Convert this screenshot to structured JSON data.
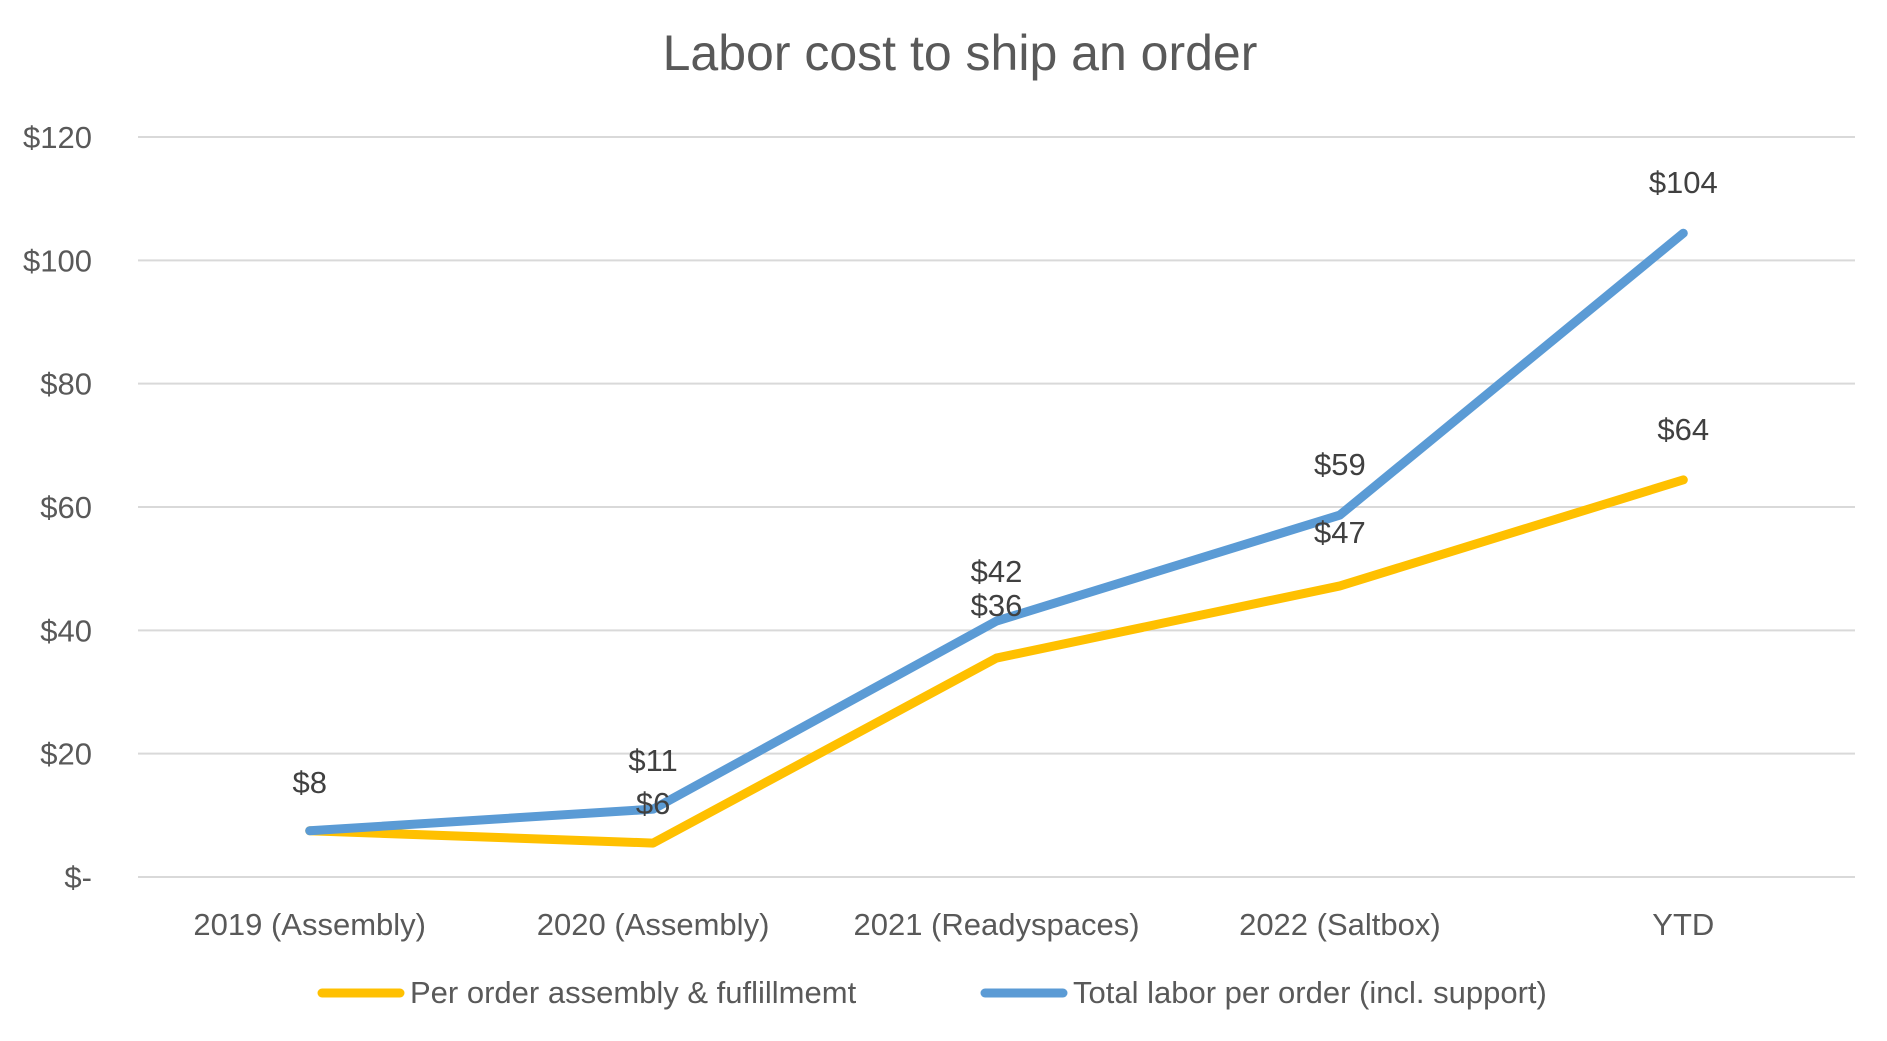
{
  "chart_data": {
    "type": "line",
    "title": "Labor cost to ship an order",
    "xlabel": "",
    "ylabel": "",
    "categories": [
      "2019 (Assembly)",
      "2020 (Assembly)",
      "2021 (Readyspaces)",
      "2022 (Saltbox)",
      "YTD"
    ],
    "ylim": [
      0,
      120
    ],
    "yticks": [
      0,
      20,
      40,
      60,
      80,
      100,
      120
    ],
    "ytick_labels": [
      "$-",
      "$20",
      "$40",
      "$60",
      "$80",
      "$100",
      "$120"
    ],
    "grid": true,
    "legend_position": "bottom",
    "series": [
      {
        "name": "Per order assembly & fuflillmemt",
        "values": [
          7.5,
          5.5,
          35.5,
          47.2,
          64.4
        ],
        "labels": [
          "$8",
          "$6",
          "$36",
          "$47",
          "$64"
        ],
        "color": "#FFC000"
      },
      {
        "name": "Total labor per order (incl. support)",
        "values": [
          7.5,
          11.0,
          41.5,
          58.7,
          104.4
        ],
        "labels": [
          "",
          "$11",
          "$42",
          "$59",
          "$104"
        ],
        "color": "#5B9BD5"
      }
    ]
  }
}
